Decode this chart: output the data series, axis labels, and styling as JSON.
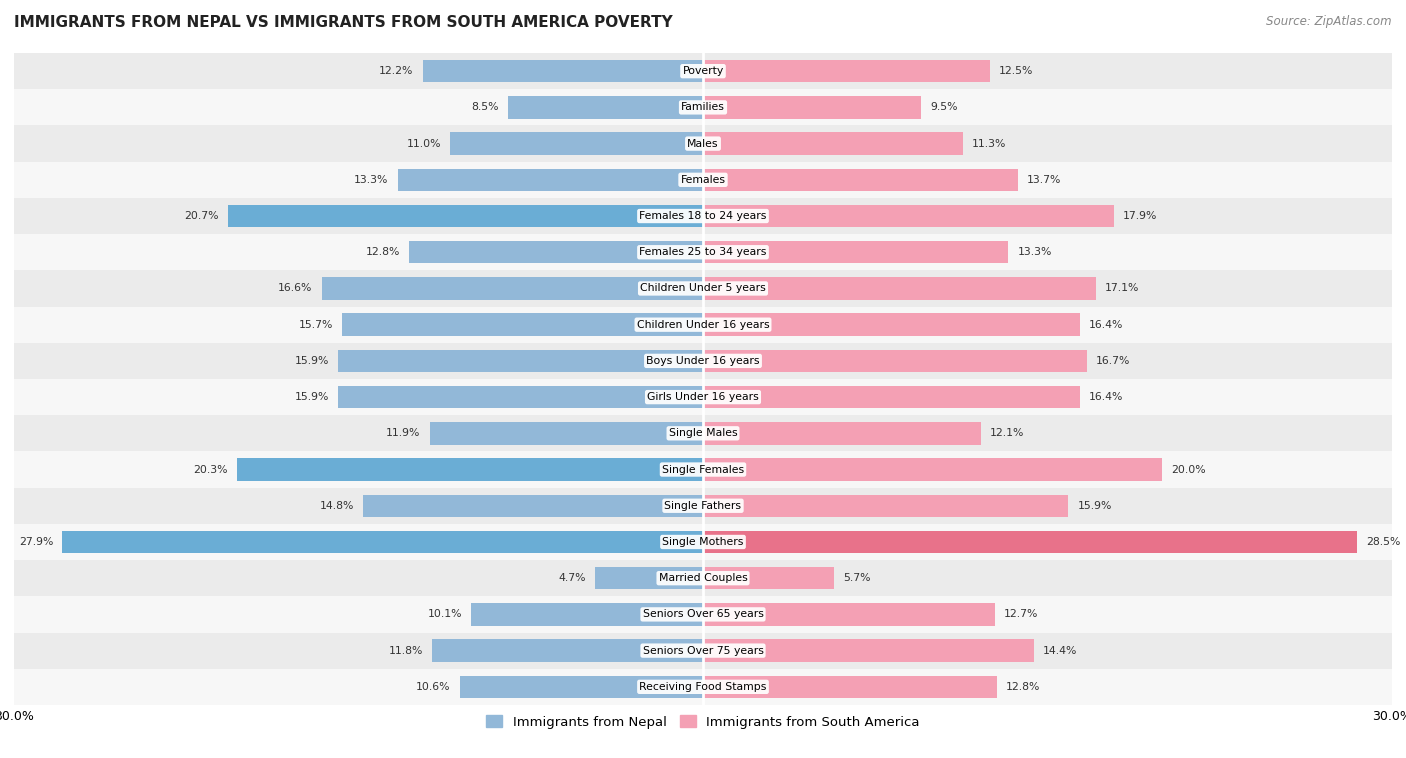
{
  "title": "IMMIGRANTS FROM NEPAL VS IMMIGRANTS FROM SOUTH AMERICA POVERTY",
  "source": "Source: ZipAtlas.com",
  "categories": [
    "Poverty",
    "Families",
    "Males",
    "Females",
    "Females 18 to 24 years",
    "Females 25 to 34 years",
    "Children Under 5 years",
    "Children Under 16 years",
    "Boys Under 16 years",
    "Girls Under 16 years",
    "Single Males",
    "Single Females",
    "Single Fathers",
    "Single Mothers",
    "Married Couples",
    "Seniors Over 65 years",
    "Seniors Over 75 years",
    "Receiving Food Stamps"
  ],
  "nepal_values": [
    12.2,
    8.5,
    11.0,
    13.3,
    20.7,
    12.8,
    16.6,
    15.7,
    15.9,
    15.9,
    11.9,
    20.3,
    14.8,
    27.9,
    4.7,
    10.1,
    11.8,
    10.6
  ],
  "south_america_values": [
    12.5,
    9.5,
    11.3,
    13.7,
    17.9,
    13.3,
    17.1,
    16.4,
    16.7,
    16.4,
    12.1,
    20.0,
    15.9,
    28.5,
    5.7,
    12.7,
    14.4,
    12.8
  ],
  "nepal_color": "#92b8d8",
  "south_america_color": "#f4a0b4",
  "nepal_label": "Immigrants from Nepal",
  "south_america_label": "Immigrants from South America",
  "xlim": 30.0,
  "bar_height": 0.62,
  "background_color": "#ffffff",
  "row_alt_color": "#ebebeb",
  "row_main_color": "#f7f7f7",
  "highlight_nepal": [
    4,
    11,
    13
  ],
  "highlight_sa": [
    13
  ],
  "highlight_color_nepal": "#6aadd5",
  "highlight_color_sa": "#e8728a"
}
